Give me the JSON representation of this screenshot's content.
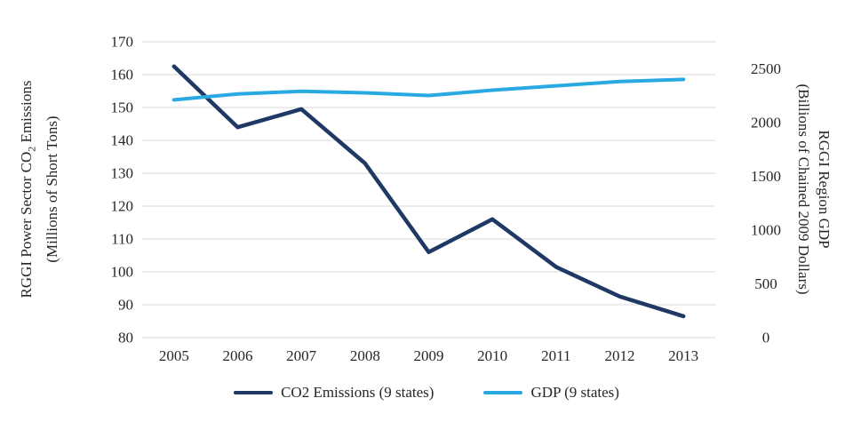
{
  "chart_data": {
    "type": "line",
    "x": [
      "2005",
      "2006",
      "2007",
      "2008",
      "2009",
      "2010",
      "2011",
      "2012",
      "2013"
    ],
    "series": [
      {
        "name": "CO2 Emissions (9 states)",
        "axis": "left",
        "color": "#1F3864",
        "stroke_width": 4.5,
        "values": [
          162.5,
          144,
          149.5,
          133,
          106,
          116,
          101.5,
          92.5,
          86.5
        ]
      },
      {
        "name": "GDP (9 states)",
        "axis": "right",
        "color": "#29A9E1",
        "stroke_width": 4,
        "values": [
          2210,
          2265,
          2290,
          2275,
          2250,
          2300,
          2340,
          2380,
          2400
        ]
      }
    ],
    "left_axis": {
      "title": "RGGI Power Sector CO2 Emissions (Millions of Short Tons)",
      "title_pre": "RGGI Power Sector CO",
      "title_sub": "2",
      "title_post": " Emissions",
      "title_line2": "(Millions of Short Tons)",
      "min": 80,
      "max": 170,
      "ticks": [
        170,
        160,
        150,
        140,
        130,
        120,
        110,
        100,
        90,
        80
      ]
    },
    "right_axis": {
      "title": "RGGI Region GDP (Billions of Chained 2009 Dollars)",
      "title_line1": "RGGI Region GDP",
      "title_line2": "(Billions of Chained 2009 Dollars)",
      "min": 0,
      "max": 2750,
      "ticks": [
        2500,
        2000,
        1500,
        1000,
        500,
        0
      ]
    },
    "legend": [
      {
        "label": "CO2 Emissions (9 states)",
        "color": "#1F3864"
      },
      {
        "label": "GDP (9 states)",
        "color": "#29A9E1"
      }
    ],
    "grid": true,
    "legend_position": "bottom",
    "colors": {
      "grid": "#D9D9D9",
      "text": "#262626",
      "background": "#FFFFFF"
    }
  }
}
